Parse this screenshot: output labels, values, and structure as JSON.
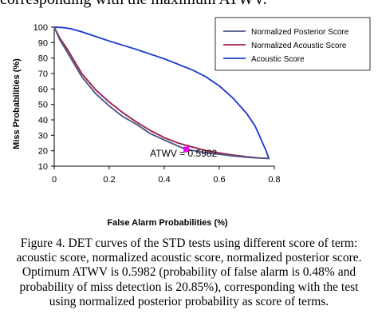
{
  "top_fragment": "corresponding with the maximum ATWV.",
  "caption": "Figure 4. DET curves of the STD tests using different score of term: acoustic score, normalized acoustic score, normalized posterior score. Optimum ATWV is 0.5982 (probability of false alarm is 0.48% and probability of miss detection is 20.85%), corresponding with the test using normalized posterior probability as score of terms.",
  "colors": {
    "posterior": "#4a5a87",
    "acoustic_normalized": "#a0204d",
    "acoustic": "#1f3fd0",
    "marker": "#ee00ee"
  },
  "chart_data": {
    "type": "line",
    "xlabel": "False Alarm Probabilities (%)",
    "ylabel": "Miss Probabilities (%)",
    "xlim": [
      0,
      0.8
    ],
    "ylim": [
      10,
      100
    ],
    "xticks": [
      "0",
      "0.2",
      "0.4",
      "0.6",
      "0.8"
    ],
    "yticks": [
      "10",
      "20",
      "30",
      "40",
      "50",
      "60",
      "70",
      "80",
      "90",
      "100"
    ],
    "grid": false,
    "legend_position": "top-right",
    "series": [
      {
        "name": "Normalized Posterior Score",
        "color_key": "posterior",
        "x": [
          0.0,
          0.02,
          0.05,
          0.08,
          0.1,
          0.15,
          0.2,
          0.25,
          0.3,
          0.35,
          0.4,
          0.45,
          0.48,
          0.55,
          0.6,
          0.65,
          0.7,
          0.75,
          0.78
        ],
        "y": [
          100,
          92,
          83,
          74,
          68,
          57,
          49,
          42,
          37,
          31,
          27,
          23,
          20.85,
          18.8,
          17.7,
          16.6,
          15.8,
          15.2,
          15
        ]
      },
      {
        "name": "Normalized Acoustic Score",
        "color_key": "acoustic_normalized",
        "x": [
          0.0,
          0.02,
          0.05,
          0.08,
          0.1,
          0.15,
          0.2,
          0.25,
          0.3,
          0.35,
          0.4,
          0.45,
          0.5,
          0.55,
          0.6,
          0.65,
          0.7,
          0.75,
          0.78
        ],
        "y": [
          100,
          93,
          85,
          76,
          70,
          59.5,
          51.5,
          44.5,
          38.5,
          33,
          28.5,
          25,
          22.5,
          20.2,
          18.6,
          17.2,
          16.1,
          15.3,
          15
        ]
      },
      {
        "name": "Acoustic Score",
        "color_key": "acoustic",
        "x": [
          0.0,
          0.03,
          0.06,
          0.1,
          0.15,
          0.2,
          0.3,
          0.4,
          0.5,
          0.55,
          0.6,
          0.65,
          0.7,
          0.73,
          0.75,
          0.77,
          0.78
        ],
        "y": [
          100,
          99.8,
          99,
          97,
          94,
          91,
          85.5,
          79.5,
          72.5,
          68,
          62,
          54,
          44,
          36,
          28,
          20,
          15
        ]
      }
    ],
    "annotations": [
      {
        "text": "ATWV = 0.5982",
        "x": 0.48,
        "y": 20.85
      }
    ]
  }
}
